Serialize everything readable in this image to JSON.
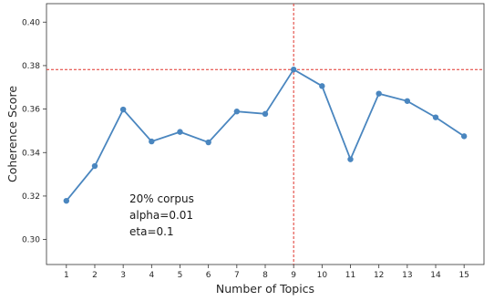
{
  "chart_data": {
    "type": "line",
    "title": "",
    "xlabel": "Number of Topics",
    "ylabel": "Coherence Score",
    "x": [
      1,
      2,
      3,
      4,
      5,
      6,
      7,
      8,
      9,
      10,
      11,
      12,
      13,
      14,
      15
    ],
    "series": [
      {
        "name": "",
        "color": "#4a86bf",
        "values": [
          0.3178,
          0.3338,
          0.3598,
          0.3451,
          0.3495,
          0.3447,
          0.3589,
          0.3578,
          0.3782,
          0.3706,
          0.3369,
          0.3671,
          0.3637,
          0.3562,
          0.3475
        ]
      }
    ],
    "xlim": [
      0.3,
      15.7
    ],
    "ylim": [
      0.2885,
      0.4085
    ],
    "xticks": [
      "1",
      "2",
      "3",
      "4",
      "5",
      "6",
      "7",
      "8",
      "9",
      "10",
      "11",
      "12",
      "13",
      "14",
      "15"
    ],
    "yticks": [
      "0.30",
      "0.32",
      "0.34",
      "0.36",
      "0.38",
      "0.40"
    ],
    "reference_lines": {
      "vertical_x": 9,
      "horizontal_y": 0.3782,
      "color": "#e0342c",
      "style": "dashed"
    },
    "annotations": [
      "20% corpus",
      "alpha=0.01",
      "eta=0.1"
    ],
    "grid": false,
    "legend": "none"
  }
}
